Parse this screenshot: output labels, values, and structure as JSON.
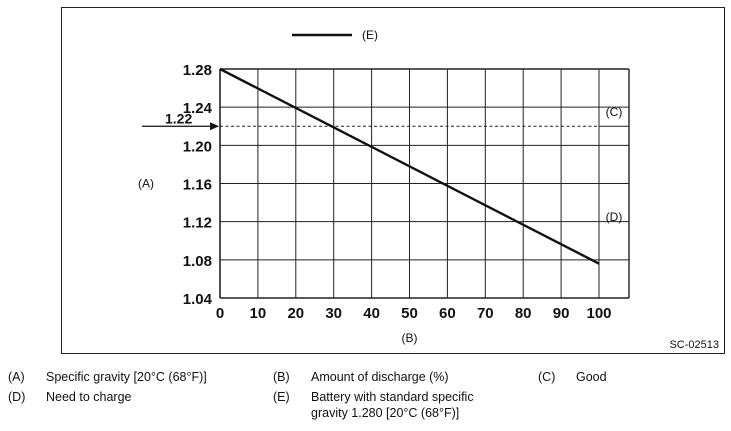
{
  "figure_code": "SC-02513",
  "chart_data": {
    "type": "line",
    "x": [
      0,
      100
    ],
    "series": [
      {
        "name": "(E)",
        "values": [
          1.28,
          1.076
        ]
      }
    ],
    "xticks": [
      "0",
      "10",
      "20",
      "30",
      "40",
      "50",
      "60",
      "70",
      "80",
      "90",
      "100"
    ],
    "yticks": [
      "1.28",
      "1.24",
      "1.20",
      "1.16",
      "1.12",
      "1.08",
      "1.04"
    ],
    "xlim": [
      0,
      100
    ],
    "ylim": [
      1.04,
      1.28
    ],
    "xlabel": "(B)",
    "ylabel": "(A)",
    "grid": true,
    "reference_line": {
      "y": 1.22,
      "label": "1.22",
      "style": "dashed"
    },
    "region_labels": [
      {
        "label": "(C)",
        "y": 1.235
      },
      {
        "label": "(D)",
        "y": 1.125
      }
    ],
    "region_divider_y": 1.22,
    "legend_label": "(E)",
    "legend_position": "top-center",
    "line_color": "#111111"
  },
  "legend": [
    {
      "key": "(A)",
      "text": "Specific gravity [20°C (68°F)]"
    },
    {
      "key": "(B)",
      "text": "Amount of discharge (%)"
    },
    {
      "key": "(C)",
      "text": "Good"
    },
    {
      "key": "(D)",
      "text": "Need to charge"
    },
    {
      "key": "(E)",
      "text": "Battery with standard specific"
    },
    {
      "key": "",
      "text": "gravity 1.280 [20°C (68°F)]"
    }
  ]
}
